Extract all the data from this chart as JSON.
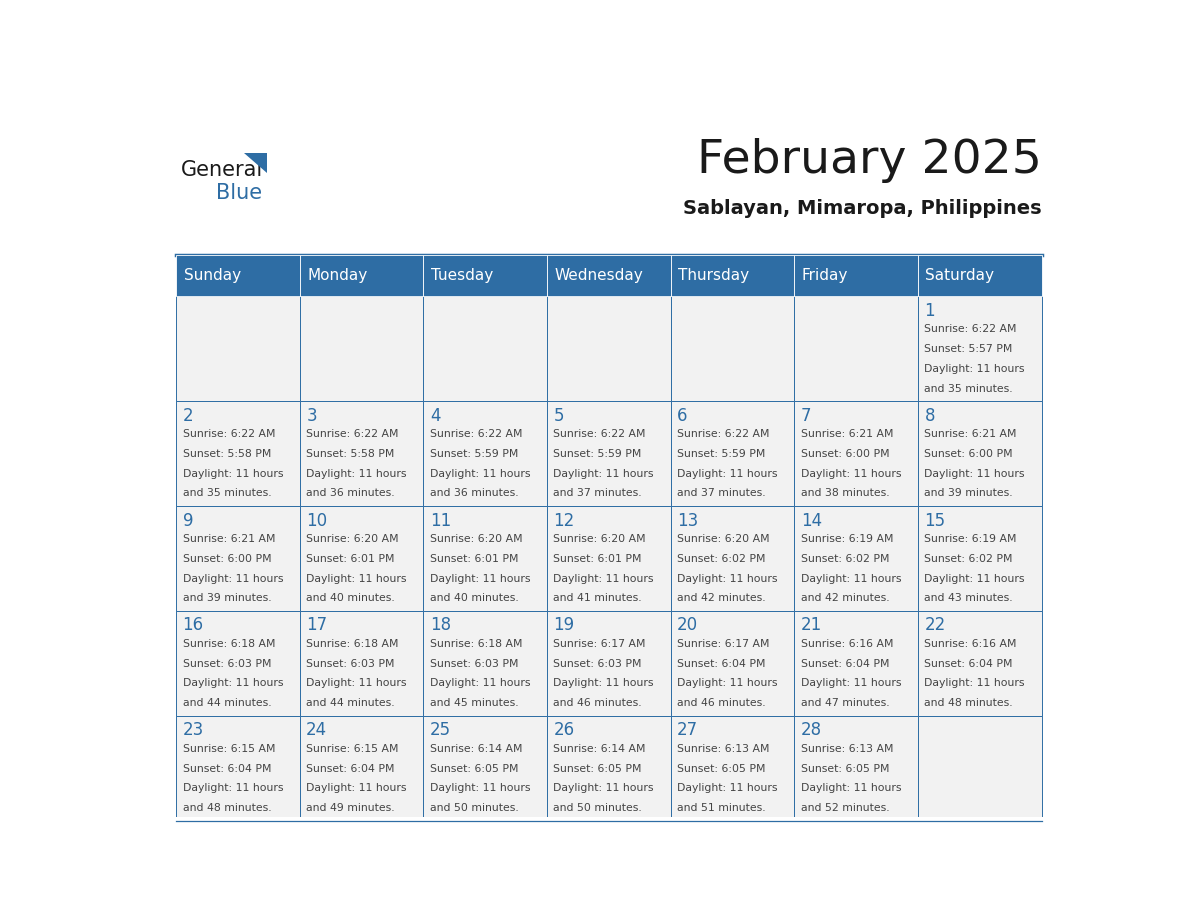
{
  "title": "February 2025",
  "subtitle": "Sablayan, Mimaropa, Philippines",
  "days_of_week": [
    "Sunday",
    "Monday",
    "Tuesday",
    "Wednesday",
    "Thursday",
    "Friday",
    "Saturday"
  ],
  "header_bg": "#2E6DA4",
  "header_text": "#FFFFFF",
  "cell_bg": "#F2F2F2",
  "border_color": "#2E6DA4",
  "text_color": "#444444",
  "day_number_color": "#2E6DA4",
  "title_color": "#1a1a1a",
  "calendar_data": [
    [
      null,
      null,
      null,
      null,
      null,
      null,
      {
        "day": 1,
        "sunrise": "6:22 AM",
        "sunset": "5:57 PM",
        "daylight": "11 hours",
        "daylight2": "and 35 minutes."
      }
    ],
    [
      {
        "day": 2,
        "sunrise": "6:22 AM",
        "sunset": "5:58 PM",
        "daylight": "11 hours",
        "daylight2": "and 35 minutes."
      },
      {
        "day": 3,
        "sunrise": "6:22 AM",
        "sunset": "5:58 PM",
        "daylight": "11 hours",
        "daylight2": "and 36 minutes."
      },
      {
        "day": 4,
        "sunrise": "6:22 AM",
        "sunset": "5:59 PM",
        "daylight": "11 hours",
        "daylight2": "and 36 minutes."
      },
      {
        "day": 5,
        "sunrise": "6:22 AM",
        "sunset": "5:59 PM",
        "daylight": "11 hours",
        "daylight2": "and 37 minutes."
      },
      {
        "day": 6,
        "sunrise": "6:22 AM",
        "sunset": "5:59 PM",
        "daylight": "11 hours",
        "daylight2": "and 37 minutes."
      },
      {
        "day": 7,
        "sunrise": "6:21 AM",
        "sunset": "6:00 PM",
        "daylight": "11 hours",
        "daylight2": "and 38 minutes."
      },
      {
        "day": 8,
        "sunrise": "6:21 AM",
        "sunset": "6:00 PM",
        "daylight": "11 hours",
        "daylight2": "and 39 minutes."
      }
    ],
    [
      {
        "day": 9,
        "sunrise": "6:21 AM",
        "sunset": "6:00 PM",
        "daylight": "11 hours",
        "daylight2": "and 39 minutes."
      },
      {
        "day": 10,
        "sunrise": "6:20 AM",
        "sunset": "6:01 PM",
        "daylight": "11 hours",
        "daylight2": "and 40 minutes."
      },
      {
        "day": 11,
        "sunrise": "6:20 AM",
        "sunset": "6:01 PM",
        "daylight": "11 hours",
        "daylight2": "and 40 minutes."
      },
      {
        "day": 12,
        "sunrise": "6:20 AM",
        "sunset": "6:01 PM",
        "daylight": "11 hours",
        "daylight2": "and 41 minutes."
      },
      {
        "day": 13,
        "sunrise": "6:20 AM",
        "sunset": "6:02 PM",
        "daylight": "11 hours",
        "daylight2": "and 42 minutes."
      },
      {
        "day": 14,
        "sunrise": "6:19 AM",
        "sunset": "6:02 PM",
        "daylight": "11 hours",
        "daylight2": "and 42 minutes."
      },
      {
        "day": 15,
        "sunrise": "6:19 AM",
        "sunset": "6:02 PM",
        "daylight": "11 hours",
        "daylight2": "and 43 minutes."
      }
    ],
    [
      {
        "day": 16,
        "sunrise": "6:18 AM",
        "sunset": "6:03 PM",
        "daylight": "11 hours",
        "daylight2": "and 44 minutes."
      },
      {
        "day": 17,
        "sunrise": "6:18 AM",
        "sunset": "6:03 PM",
        "daylight": "11 hours",
        "daylight2": "and 44 minutes."
      },
      {
        "day": 18,
        "sunrise": "6:18 AM",
        "sunset": "6:03 PM",
        "daylight": "11 hours",
        "daylight2": "and 45 minutes."
      },
      {
        "day": 19,
        "sunrise": "6:17 AM",
        "sunset": "6:03 PM",
        "daylight": "11 hours",
        "daylight2": "and 46 minutes."
      },
      {
        "day": 20,
        "sunrise": "6:17 AM",
        "sunset": "6:04 PM",
        "daylight": "11 hours",
        "daylight2": "and 46 minutes."
      },
      {
        "day": 21,
        "sunrise": "6:16 AM",
        "sunset": "6:04 PM",
        "daylight": "11 hours",
        "daylight2": "and 47 minutes."
      },
      {
        "day": 22,
        "sunrise": "6:16 AM",
        "sunset": "6:04 PM",
        "daylight": "11 hours",
        "daylight2": "and 48 minutes."
      }
    ],
    [
      {
        "day": 23,
        "sunrise": "6:15 AM",
        "sunset": "6:04 PM",
        "daylight": "11 hours",
        "daylight2": "and 48 minutes."
      },
      {
        "day": 24,
        "sunrise": "6:15 AM",
        "sunset": "6:04 PM",
        "daylight": "11 hours",
        "daylight2": "and 49 minutes."
      },
      {
        "day": 25,
        "sunrise": "6:14 AM",
        "sunset": "6:05 PM",
        "daylight": "11 hours",
        "daylight2": "and 50 minutes."
      },
      {
        "day": 26,
        "sunrise": "6:14 AM",
        "sunset": "6:05 PM",
        "daylight": "11 hours",
        "daylight2": "and 50 minutes."
      },
      {
        "day": 27,
        "sunrise": "6:13 AM",
        "sunset": "6:05 PM",
        "daylight": "11 hours",
        "daylight2": "and 51 minutes."
      },
      {
        "day": 28,
        "sunrise": "6:13 AM",
        "sunset": "6:05 PM",
        "daylight": "11 hours",
        "daylight2": "and 52 minutes."
      },
      null
    ]
  ],
  "logo_text_general": "General",
  "logo_text_blue": "Blue",
  "logo_triangle_color": "#2E6DA4"
}
